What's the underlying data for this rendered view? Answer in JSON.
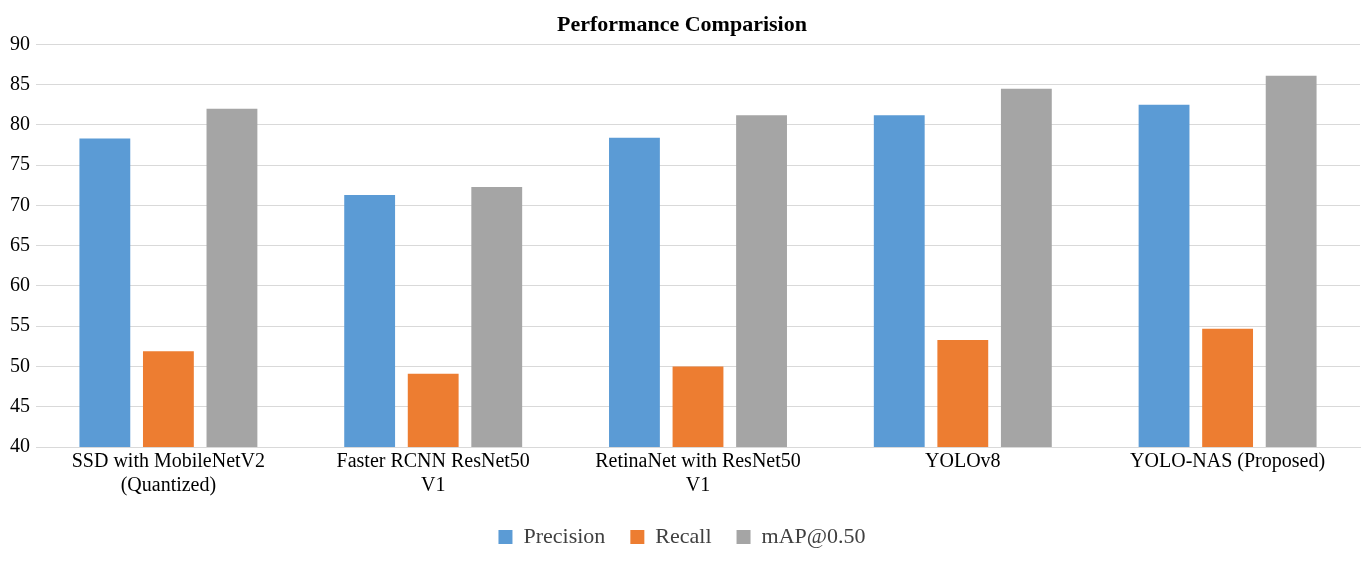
{
  "chart_data": {
    "type": "bar",
    "title": "Performance Comparision",
    "categories": [
      "SSD with MobileNetV2 (Quantized)",
      "Faster RCNN ResNet50 V1",
      "RetinaNet with ResNet50 V1",
      "YOLOv8",
      "YOLO-NAS (Proposed)"
    ],
    "series": [
      {
        "name": "Precision",
        "color": "#5b9bd5",
        "values": [
          78.3,
          71.3,
          78.4,
          81.2,
          82.5
        ]
      },
      {
        "name": "Recall",
        "color": "#ed7d31",
        "values": [
          51.9,
          49.1,
          50,
          53.3,
          54.7
        ]
      },
      {
        "name": "mAP@0.50",
        "color": "#a5a5a5",
        "values": [
          82,
          72.3,
          81.2,
          84.5,
          86.1
        ]
      }
    ],
    "ylim": [
      40,
      90
    ],
    "yticks": [
      40,
      45,
      50,
      55,
      60,
      65,
      70,
      75,
      80,
      85,
      90
    ],
    "grid": "y",
    "legend": "bottom"
  }
}
